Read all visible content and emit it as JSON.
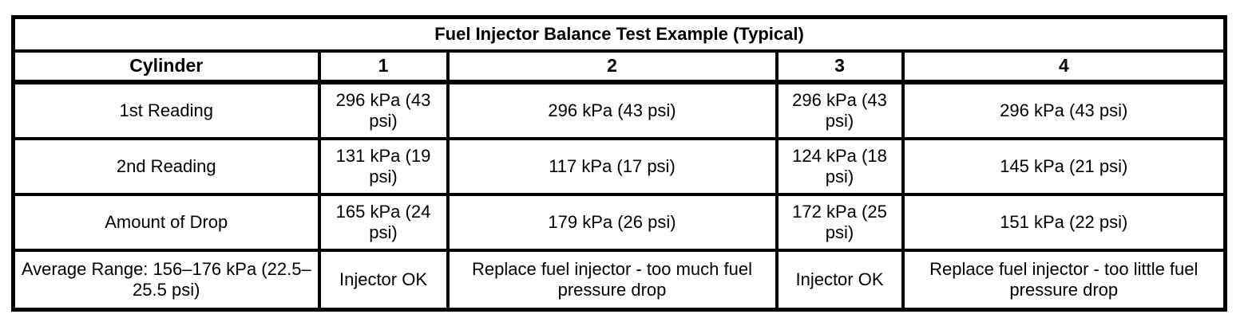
{
  "table": {
    "title": "Fuel Injector Balance Test Example (Typical)",
    "header": [
      "Cylinder",
      "1",
      "2",
      "3",
      "4"
    ],
    "rows": [
      {
        "label": "1st Reading",
        "values": [
          "296 kPa (43 psi)",
          "296 kPa (43 psi)",
          "296 kPa (43 psi)",
          "296 kPa (43 psi)"
        ]
      },
      {
        "label": "2nd Reading",
        "values": [
          "131 kPa (19 psi)",
          "117 kPa (17 psi)",
          "124 kPa (18 psi)",
          "145 kPa (21 psi)"
        ]
      },
      {
        "label": "Amount of Drop",
        "values": [
          "165 kPa (24 psi)",
          "179 kPa (26 psi)",
          "172 kPa (25 psi)",
          "151 kPa (22 psi)"
        ]
      },
      {
        "label": "Average Range: 156–176 kPa (22.5–25.5 psi)",
        "values": [
          "Injector OK",
          "Replace fuel injector - too much fuel pressure drop",
          "Injector OK",
          "Replace fuel injector - too little fuel pressure drop"
        ]
      }
    ]
  }
}
